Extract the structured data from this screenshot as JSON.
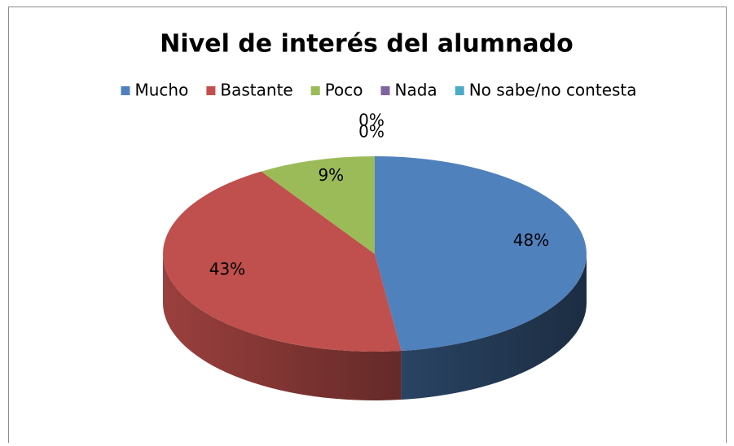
{
  "chart_data": {
    "type": "pie",
    "title": "Nivel de interés del alumnado",
    "categories": [
      "Mucho",
      "Bastante",
      "Poco",
      "Nada",
      "No sabe/no contesta"
    ],
    "values": [
      48,
      43,
      9,
      0,
      0
    ],
    "value_labels": [
      "48%",
      "43%",
      "9%",
      "0%",
      "0%"
    ],
    "colors": [
      "#4f81bd",
      "#c0504d",
      "#9bbb59",
      "#8064a2",
      "#4bacc6"
    ],
    "legend": "top"
  }
}
